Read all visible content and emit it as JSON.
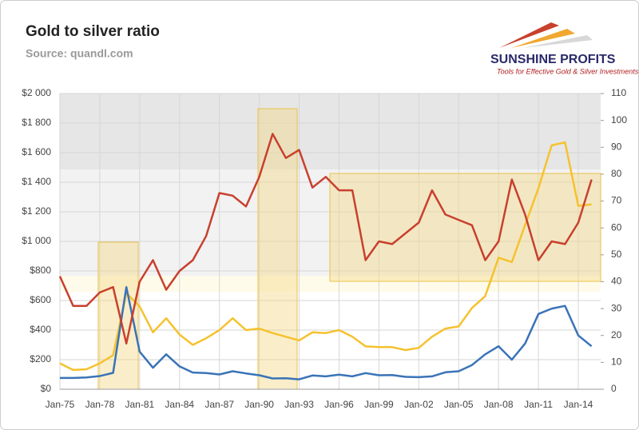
{
  "chart_data": {
    "type": "line",
    "title": "Gold to silver ratio",
    "subtitle": "Source: quandl.com",
    "logo": {
      "name": "SUNSHINE PROFITS",
      "tagline": "Tools for Effective Gold & Silver Investments"
    },
    "categories": [
      "Jan-75",
      null,
      null,
      "Jan-78",
      null,
      null,
      "Jan-81",
      null,
      null,
      "Jan-84",
      null,
      null,
      "Jan-87",
      null,
      null,
      "Jan-90",
      null,
      null,
      "Jan-93",
      null,
      null,
      "Jan-96",
      null,
      null,
      "Jan-99",
      null,
      null,
      "Jan-02",
      null,
      null,
      "Jan-05",
      null,
      null,
      "Jan-08",
      null,
      null,
      "Jan-11",
      null,
      null,
      "Jan-14",
      null
    ],
    "ylim": [
      0,
      2000
    ],
    "yticks": [
      {
        "value": 0,
        "label": "$0"
      },
      {
        "value": 200,
        "label": "$200"
      },
      {
        "value": 400,
        "label": "$400"
      },
      {
        "value": 600,
        "label": "$600"
      },
      {
        "value": 800,
        "label": "$800"
      },
      {
        "value": 1000,
        "label": "$1 000"
      },
      {
        "value": 1200,
        "label": "$1 200"
      },
      {
        "value": 1400,
        "label": "$1 400"
      },
      {
        "value": 1600,
        "label": "$1 600"
      },
      {
        "value": 1800,
        "label": "$1 800"
      },
      {
        "value": 2000,
        "label": "$2 000"
      }
    ],
    "y2lim": [
      0,
      110
    ],
    "y2ticks": [
      0,
      10,
      20,
      30,
      40,
      50,
      60,
      70,
      80,
      90,
      100,
      110
    ],
    "grid": true,
    "series": [
      {
        "color": "#f5c22e",
        "values": [
          175,
          130,
          135,
          175,
          230,
          650,
          560,
          385,
          480,
          370,
          300,
          345,
          400,
          480,
          400,
          410,
          380,
          355,
          330,
          385,
          380,
          400,
          355,
          290,
          285,
          285,
          265,
          280,
          355,
          410,
          425,
          550,
          630,
          890,
          860,
          1110,
          1360,
          1650,
          1670,
          1240,
          1250
        ]
      },
      {
        "color": "#3a73b8",
        "axis": "y2",
        "values": [
          4.2,
          4.2,
          4.4,
          4.9,
          6.1,
          38,
          14,
          8,
          13,
          8.5,
          6.2,
          6,
          5.5,
          6.7,
          5.9,
          5.2,
          4,
          4.1,
          3.7,
          5.1,
          4.8,
          5.4,
          4.8,
          6,
          5.2,
          5.3,
          4.6,
          4.5,
          4.8,
          6.3,
          6.7,
          9,
          13,
          16,
          11,
          17,
          28,
          30,
          31,
          20,
          16
        ]
      },
      {
        "color": "#c8402e",
        "axis": "y2",
        "values": [
          42,
          31,
          31,
          36,
          38,
          17,
          40,
          48,
          37,
          44,
          48,
          57,
          73,
          72,
          68,
          79,
          95,
          86,
          89,
          75,
          79,
          74,
          74,
          48,
          55,
          54,
          58,
          62,
          74,
          65,
          63,
          61,
          48,
          55,
          78,
          65,
          48,
          55,
          54,
          62,
          78
        ]
      }
    ]
  }
}
